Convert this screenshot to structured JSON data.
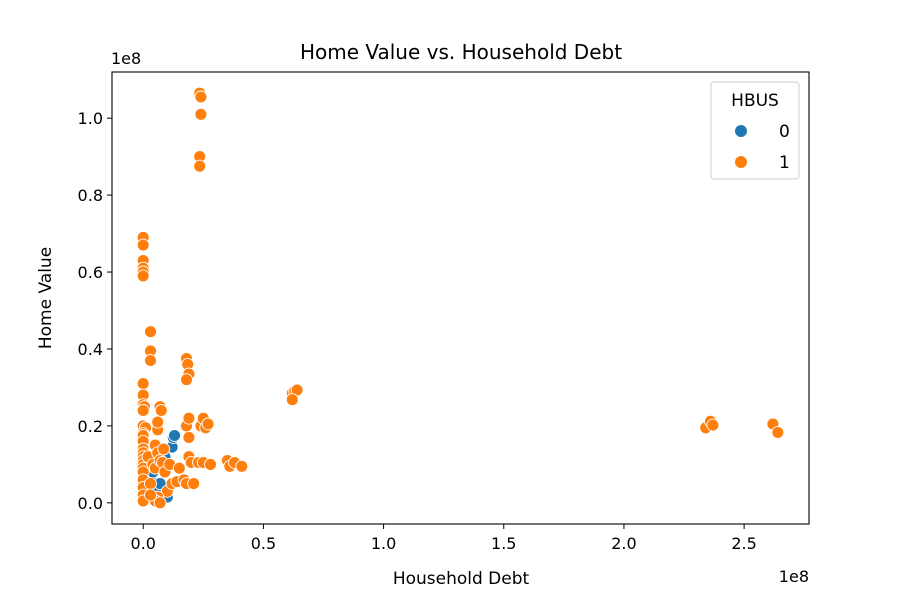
{
  "chart_data": {
    "type": "scatter",
    "title": "Home Value vs. Household Debt",
    "xlabel": "Household Debt",
    "ylabel": "Home Value",
    "x_offset_label": "1e8",
    "y_offset_label": "1e8",
    "xlim": [
      -0.13,
      2.77
    ],
    "ylim": [
      -0.055,
      1.12
    ],
    "x_ticks": [
      0.0,
      0.5,
      1.0,
      1.5,
      2.0,
      2.5
    ],
    "x_tick_labels": [
      "0.0",
      "0.5",
      "1.0",
      "1.5",
      "2.0",
      "2.5"
    ],
    "y_ticks": [
      0.0,
      0.2,
      0.4,
      0.6,
      0.8,
      1.0
    ],
    "y_tick_labels": [
      "0.0",
      "0.2",
      "0.4",
      "0.6",
      "0.8",
      "1.0"
    ],
    "grid": false,
    "legend": {
      "title": "HBUS",
      "position": "upper right",
      "entries": [
        {
          "label": "0",
          "color": "#1f77b4"
        },
        {
          "label": "1",
          "color": "#ff7f0e"
        }
      ]
    },
    "series": [
      {
        "name": "0",
        "color": "#1f77b4",
        "points": [
          [
            0.0,
            0.01
          ],
          [
            0.0,
            0.02
          ],
          [
            0.0,
            0.05
          ],
          [
            0.005,
            0.015
          ],
          [
            0.01,
            0.03
          ],
          [
            0.02,
            0.04
          ],
          [
            0.03,
            0.06
          ],
          [
            0.04,
            0.08
          ],
          [
            0.05,
            0.02
          ],
          [
            0.06,
            0.03
          ],
          [
            0.08,
            0.015
          ],
          [
            0.09,
            0.12
          ],
          [
            0.1,
            0.015
          ],
          [
            0.12,
            0.145
          ],
          [
            0.125,
            0.17
          ],
          [
            0.13,
            0.175
          ],
          [
            0.02,
            0.1
          ],
          [
            0.07,
            0.05
          ]
        ]
      },
      {
        "name": "1",
        "color": "#ff7f0e",
        "points": [
          [
            0.0,
            0.69
          ],
          [
            0.0,
            0.67
          ],
          [
            0.0,
            0.63
          ],
          [
            0.0,
            0.61
          ],
          [
            0.0,
            0.6
          ],
          [
            0.0,
            0.59
          ],
          [
            0.03,
            0.445
          ],
          [
            0.03,
            0.395
          ],
          [
            0.03,
            0.37
          ],
          [
            0.0,
            0.31
          ],
          [
            0.0,
            0.28
          ],
          [
            0.0,
            0.255
          ],
          [
            0.005,
            0.25
          ],
          [
            0.0,
            0.24
          ],
          [
            0.0,
            0.2
          ],
          [
            0.01,
            0.195
          ],
          [
            0.0,
            0.18
          ],
          [
            0.0,
            0.175
          ],
          [
            0.0,
            0.16
          ],
          [
            0.0,
            0.14
          ],
          [
            0.0,
            0.13
          ],
          [
            0.0,
            0.12
          ],
          [
            0.0,
            0.11
          ],
          [
            0.0,
            0.1
          ],
          [
            0.0,
            0.09
          ],
          [
            0.0,
            0.08
          ],
          [
            0.0,
            0.06
          ],
          [
            0.0,
            0.04
          ],
          [
            0.0,
            0.02
          ],
          [
            0.0,
            0.005
          ],
          [
            0.02,
            0.12
          ],
          [
            0.03,
            0.05
          ],
          [
            0.04,
            0.1
          ],
          [
            0.05,
            0.09
          ],
          [
            0.05,
            0.15
          ],
          [
            0.06,
            0.19
          ],
          [
            0.06,
            0.21
          ],
          [
            0.06,
            0.13
          ],
          [
            0.07,
            0.11
          ],
          [
            0.07,
            0.25
          ],
          [
            0.075,
            0.24
          ],
          [
            0.08,
            0.105
          ],
          [
            0.085,
            0.14
          ],
          [
            0.09,
            0.08
          ],
          [
            0.1,
            0.03
          ],
          [
            0.06,
            0.015
          ],
          [
            0.05,
            0.005
          ],
          [
            0.07,
            0.0
          ],
          [
            0.03,
            0.02
          ],
          [
            0.11,
            0.1
          ],
          [
            0.12,
            0.05
          ],
          [
            0.14,
            0.055
          ],
          [
            0.15,
            0.09
          ],
          [
            0.17,
            0.06
          ],
          [
            0.18,
            0.05
          ],
          [
            0.19,
            0.12
          ],
          [
            0.2,
            0.105
          ],
          [
            0.21,
            0.05
          ],
          [
            0.18,
            0.375
          ],
          [
            0.185,
            0.36
          ],
          [
            0.19,
            0.335
          ],
          [
            0.18,
            0.32
          ],
          [
            0.18,
            0.2
          ],
          [
            0.19,
            0.22
          ],
          [
            0.19,
            0.17
          ],
          [
            0.23,
            0.105
          ],
          [
            0.24,
            0.2
          ],
          [
            0.25,
            0.22
          ],
          [
            0.26,
            0.195
          ],
          [
            0.27,
            0.205
          ],
          [
            0.25,
            0.105
          ],
          [
            0.28,
            0.1
          ],
          [
            0.235,
            1.065
          ],
          [
            0.24,
            1.055
          ],
          [
            0.24,
            1.01
          ],
          [
            0.235,
            0.9
          ],
          [
            0.235,
            0.875
          ],
          [
            0.35,
            0.11
          ],
          [
            0.36,
            0.095
          ],
          [
            0.38,
            0.105
          ],
          [
            0.41,
            0.095
          ],
          [
            0.62,
            0.285
          ],
          [
            0.63,
            0.29
          ],
          [
            0.64,
            0.293
          ],
          [
            0.62,
            0.268
          ],
          [
            2.34,
            0.195
          ],
          [
            2.36,
            0.212
          ],
          [
            2.37,
            0.202
          ],
          [
            2.62,
            0.205
          ],
          [
            2.64,
            0.183
          ]
        ]
      }
    ]
  }
}
